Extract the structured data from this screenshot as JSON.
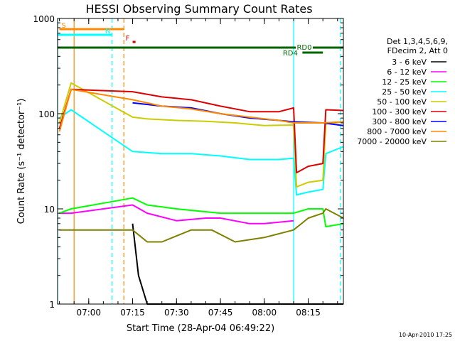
{
  "chart_data": {
    "type": "line",
    "title": "HESSI Observing Summary Count Rates",
    "xlabel": "Start Time (28-Apr-04 06:49:22)",
    "ylabel": "Count Rate (s⁻¹ detector⁻¹)",
    "y_scale": "log",
    "ylim": [
      1,
      1000
    ],
    "xlim": [
      "06:49:22",
      "08:27:00"
    ],
    "x_ticks": [
      "07:00",
      "07:15",
      "07:30",
      "07:45",
      "08:00",
      "08:15"
    ],
    "y_ticks": [
      "1",
      "10",
      "100",
      "1000"
    ],
    "legend_position": "right",
    "legend_header": [
      "Det 1,3,4,5,6,9,",
      "FDecim 2, Att 0"
    ],
    "series": [
      {
        "name": "3 - 6 keV",
        "color": "#000000",
        "x": [
          "07:15",
          "07:17",
          "07:20",
          "07:25",
          "07:30",
          "07:55",
          "08:10",
          "08:20",
          "08:27"
        ],
        "y": [
          7,
          2,
          1,
          1,
          1,
          1,
          1,
          1,
          1
        ]
      },
      {
        "name": "6 - 12 keV",
        "color": "#ff00ff",
        "x": [
          "06:50",
          "06:54",
          "07:15",
          "07:20",
          "07:30",
          "07:40",
          "07:45",
          "07:55",
          "08:00",
          "08:10"
        ],
        "y": [
          9,
          9,
          11,
          9,
          7.5,
          8,
          8,
          7,
          7,
          7.5
        ]
      },
      {
        "name": "12 - 25 keV",
        "color": "#00ff00",
        "x": [
          "06:50",
          "06:54",
          "07:15",
          "07:20",
          "07:30",
          "07:45",
          "08:00",
          "08:10",
          "08:15",
          "08:20",
          "08:21",
          "08:27"
        ],
        "y": [
          9,
          10,
          13,
          11,
          10,
          9,
          9,
          9,
          10,
          10,
          6.5,
          7
        ]
      },
      {
        "name": "25 - 50 keV",
        "color": "#00ffff",
        "x": [
          "06:50",
          "06:54",
          "07:15",
          "07:25",
          "07:35",
          "07:45",
          "07:55",
          "08:05",
          "08:10",
          "08:11",
          "08:15",
          "08:20",
          "08:21",
          "08:27"
        ],
        "y": [
          90,
          110,
          40,
          38,
          38,
          36,
          33,
          33,
          34,
          14,
          15,
          16,
          38,
          45
        ]
      },
      {
        "name": "50 - 100 keV",
        "color": "#cccc00",
        "x": [
          "06:50",
          "06:54",
          "07:15",
          "07:20",
          "07:30",
          "07:40",
          "07:50",
          "08:00",
          "08:10",
          "08:11",
          "08:15",
          "08:20",
          "08:21",
          "08:27"
        ],
        "y": [
          80,
          210,
          92,
          88,
          85,
          83,
          80,
          75,
          76,
          17,
          19,
          20,
          78,
          82
        ]
      },
      {
        "name": "100 - 300 keV",
        "color": "#dd0000",
        "x": [
          "06:50",
          "06:54",
          "07:15",
          "07:25",
          "07:35",
          "07:45",
          "07:55",
          "08:05",
          "08:10",
          "08:11",
          "08:15",
          "08:20",
          "08:21",
          "08:27"
        ],
        "y": [
          70,
          180,
          170,
          150,
          140,
          120,
          105,
          105,
          115,
          24,
          28,
          30,
          110,
          108
        ]
      },
      {
        "name": "300 - 800 keV",
        "color": "#0000ff",
        "x": [
          "07:15",
          "07:25",
          "07:35",
          "07:45",
          "07:55",
          "08:05",
          "08:10",
          "08:20",
          "08:27"
        ],
        "y": [
          130,
          120,
          115,
          100,
          90,
          85,
          82,
          80,
          75
        ]
      },
      {
        "name": "800 - 7000 keV",
        "color": "#ff8800",
        "x": [
          "06:50",
          "06:54",
          "07:15",
          "07:25",
          "07:35",
          "07:45",
          "07:55",
          "08:05",
          "08:10",
          "08:20",
          "08:27"
        ],
        "y": [
          65,
          180,
          140,
          120,
          112,
          100,
          92,
          85,
          80,
          80,
          82
        ]
      },
      {
        "name": "7000 - 20000 keV",
        "color": "#808000",
        "x": [
          "06:50",
          "06:54",
          "07:15",
          "07:20",
          "07:25",
          "07:35",
          "07:42",
          "07:50",
          "08:00",
          "08:10",
          "08:15",
          "08:20",
          "08:21",
          "08:27"
        ],
        "y": [
          6,
          6,
          6,
          4.5,
          4.5,
          6,
          6,
          4.5,
          5,
          6,
          8,
          9,
          10,
          8
        ]
      }
    ],
    "annotations": {
      "bars": [
        {
          "label": "S",
          "color": "#ff8800",
          "from": "06:50",
          "to": "07:12"
        },
        {
          "label": "N",
          "color": "#00ffff",
          "from": "06:49:22",
          "to": "07:08"
        },
        {
          "label": "F",
          "color": "#dd0000",
          "from": "07:15",
          "to": "07:16"
        },
        {
          "label": "RD0",
          "color": "#006600",
          "from": "06:49:22",
          "to": "08:27"
        },
        {
          "label": "RD4",
          "color": "#006600",
          "from": "08:13",
          "to": "08:20"
        }
      ],
      "vertical_lines": [
        {
          "time": "06:49:22",
          "color": "#00ffff",
          "style": "solid"
        },
        {
          "time": "06:55",
          "color": "#ff8800",
          "style": "solid"
        },
        {
          "time": "07:08",
          "color": "#00ffff",
          "style": "dashed"
        },
        {
          "time": "07:12",
          "color": "#ff8800",
          "style": "dashed"
        },
        {
          "time": "08:10",
          "color": "#00ffff",
          "style": "solid"
        },
        {
          "time": "08:26",
          "color": "#00ffff",
          "style": "dashed"
        }
      ]
    }
  },
  "footer": {
    "date_stamp": "10-Apr-2010 17:25"
  }
}
